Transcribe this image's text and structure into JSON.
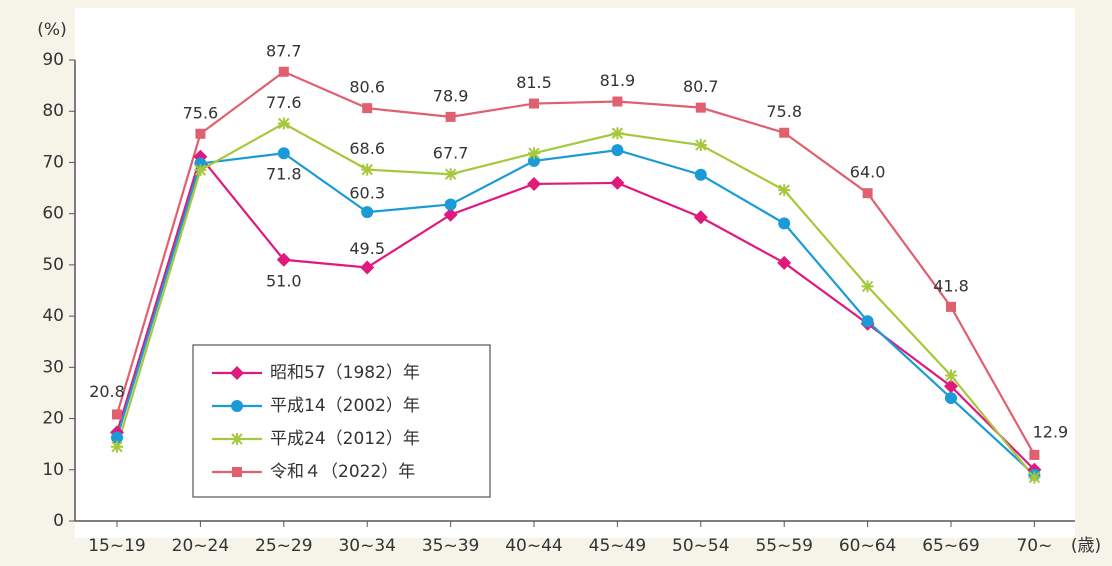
{
  "chart_data": {
    "type": "line",
    "y_unit": "(%)",
    "x_unit": "(歳)",
    "categories": [
      "15~19",
      "20~24",
      "25~29",
      "30~34",
      "35~39",
      "40~44",
      "45~49",
      "50~54",
      "55~59",
      "60~64",
      "65~69",
      "70~"
    ],
    "ylim": [
      0,
      90
    ],
    "yticks": [
      0,
      10,
      20,
      30,
      40,
      50,
      60,
      70,
      80,
      90
    ],
    "series": [
      {
        "name": "昭和57（1982）年",
        "color": "#e0197d",
        "marker": "diamond",
        "values": [
          17.3,
          71.1,
          51.0,
          49.5,
          59.8,
          65.8,
          66.0,
          59.3,
          50.4,
          38.5,
          26.3,
          10.0
        ],
        "value_labels": [
          null,
          null,
          "51.0",
          "49.5",
          null,
          null,
          null,
          null,
          null,
          null,
          null,
          null
        ]
      },
      {
        "name": "平成14（2002）年",
        "color": "#1a9ad6",
        "marker": "circle",
        "values": [
          16.3,
          69.8,
          71.8,
          60.3,
          61.8,
          70.3,
          72.4,
          67.6,
          58.1,
          39.0,
          24.0,
          9.0
        ],
        "value_labels": [
          null,
          null,
          "71.8",
          "60.3",
          null,
          null,
          null,
          null,
          null,
          null,
          null,
          null
        ]
      },
      {
        "name": "平成24（2012）年",
        "color": "#a6c83c",
        "marker": "asterisk",
        "values": [
          14.5,
          68.5,
          77.6,
          68.6,
          67.7,
          71.8,
          75.7,
          73.4,
          64.6,
          45.8,
          28.4,
          8.5
        ],
        "value_labels": [
          null,
          null,
          "77.6",
          "68.6",
          "67.7",
          null,
          null,
          null,
          null,
          null,
          null,
          null
        ]
      },
      {
        "name": "令和４（2022）年",
        "color": "#e06070",
        "marker": "square",
        "values": [
          20.8,
          75.6,
          87.7,
          80.6,
          78.9,
          81.5,
          81.9,
          80.7,
          75.8,
          64.0,
          41.8,
          12.9
        ],
        "value_labels": [
          "20.8",
          "75.6",
          "87.7",
          "80.6",
          "78.9",
          "81.5",
          "81.9",
          "80.7",
          "75.8",
          "64.0",
          "41.8",
          "12.9"
        ]
      }
    ]
  }
}
